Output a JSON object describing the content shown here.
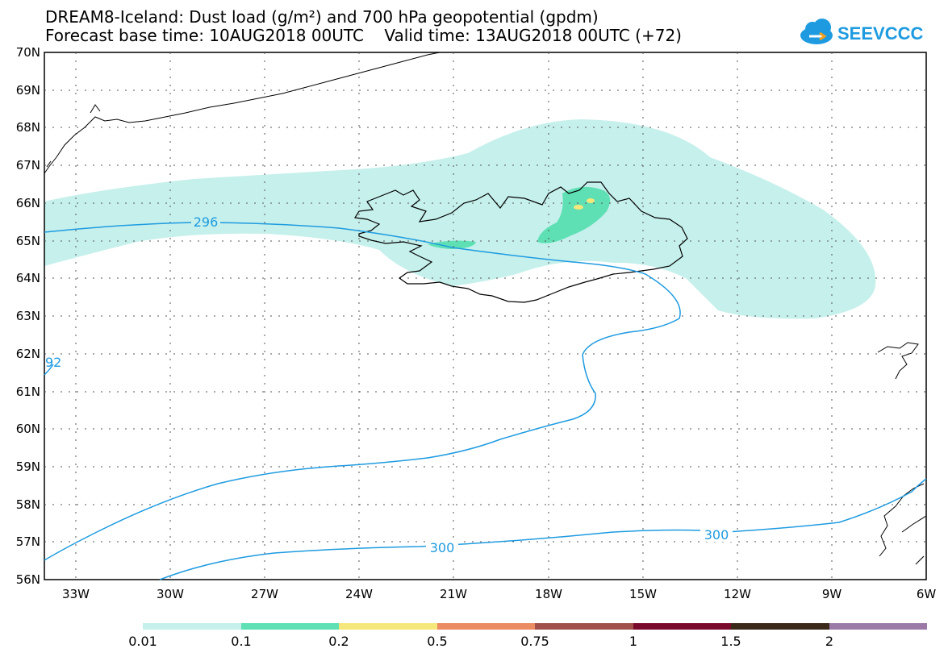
{
  "title_line1": "DREAM8-Iceland: Dust load (g/m²) and 700 hPa geopotential (gpdm)",
  "title_line2": "Forecast base time: 10AUG2018 00UTC    Valid time: 13AUG2018 00UTC (+72)",
  "logo_text": "SEEVCCC",
  "logo_color": "#1e9be0",
  "lat_labels": [
    "70N",
    "69N",
    "68N",
    "67N",
    "66N",
    "65N",
    "64N",
    "63N",
    "62N",
    "61N",
    "60N",
    "59N",
    "58N",
    "57N",
    "56N"
  ],
  "lon_labels": [
    "33W",
    "30W",
    "27W",
    "24W",
    "21W",
    "18W",
    "15W",
    "12W",
    "9W",
    "6W"
  ],
  "contour_labels": {
    "a": "296",
    "b": "300",
    "c": "300",
    "d": "92"
  },
  "contour_color": "#1e9be0",
  "colorbar": {
    "colors": [
      "#c5f0ec",
      "#5ee0b4",
      "#f5e77a",
      "#eb8c62",
      "#a05048",
      "#7a0a2c",
      "#3a2818",
      "#9c7aa8"
    ],
    "labels": [
      "0.01",
      "0.1",
      "0.2",
      "0.5",
      "0.75",
      "1",
      "1.5",
      "2"
    ]
  }
}
